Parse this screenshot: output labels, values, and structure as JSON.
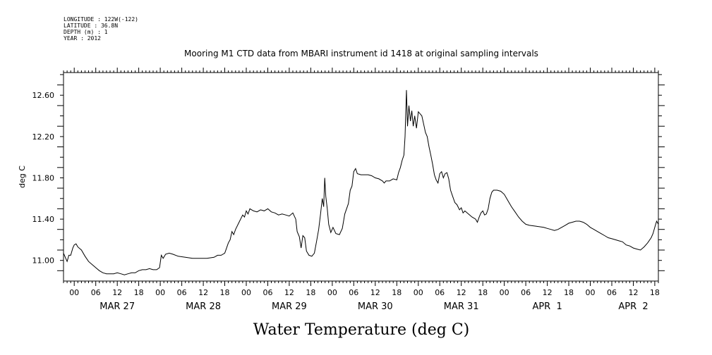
{
  "meta": {
    "longitude": "LONGITUDE : 122W(-122)",
    "latitude": "LATITUDE : 36.8N",
    "depth": "DEPTH (m) : 1",
    "year": "YEAR : 2012"
  },
  "chart_data": {
    "type": "line",
    "title": "Mooring M1 CTD data from MBARI instrument id 1418 at original sampling intervals",
    "xlabel": "Water Temperature (deg C)",
    "ylabel": "deg C",
    "x_unit": "hours since 2012-03-26 21:00",
    "xlim": [
      0,
      166
    ],
    "ylim": [
      10.8,
      12.82
    ],
    "yticks": [
      11.0,
      11.4,
      11.8,
      12.2,
      12.6
    ],
    "ytick_labels": [
      "11.00",
      "11.40",
      "11.80",
      "12.20",
      "12.60"
    ],
    "hour_tick_labels": [
      "00",
      "06",
      "12",
      "18"
    ],
    "day_labels": [
      {
        "label": "MAR 27",
        "x": 15
      },
      {
        "label": "MAR 28",
        "x": 39
      },
      {
        "label": "MAR 29",
        "x": 63
      },
      {
        "label": "MAR 30",
        "x": 87
      },
      {
        "label": "MAR 31",
        "x": 111
      },
      {
        "label": "APR  1",
        "x": 135
      },
      {
        "label": "APR  2",
        "x": 159
      }
    ],
    "grid": false,
    "series": [
      {
        "points": [
          [
            0,
            11.07
          ],
          [
            0.5,
            11.03
          ],
          [
            1,
            10.99
          ],
          [
            1.5,
            11.05
          ],
          [
            2,
            11.05
          ],
          [
            2.6,
            11.12
          ],
          [
            3,
            11.15
          ],
          [
            3.5,
            11.16
          ],
          [
            4,
            11.13
          ],
          [
            5,
            11.1
          ],
          [
            6,
            11.04
          ],
          [
            7,
            10.99
          ],
          [
            8,
            10.96
          ],
          [
            9,
            10.93
          ],
          [
            10,
            10.9
          ],
          [
            11,
            10.88
          ],
          [
            12,
            10.87
          ],
          [
            13,
            10.87
          ],
          [
            14,
            10.87
          ],
          [
            15,
            10.88
          ],
          [
            16,
            10.87
          ],
          [
            17,
            10.86
          ],
          [
            18,
            10.87
          ],
          [
            19,
            10.88
          ],
          [
            20,
            10.88
          ],
          [
            21,
            10.9
          ],
          [
            22,
            10.91
          ],
          [
            23,
            10.91
          ],
          [
            24,
            10.92
          ],
          [
            25,
            10.91
          ],
          [
            26,
            10.91
          ],
          [
            26.8,
            10.93
          ],
          [
            27.3,
            11.05
          ],
          [
            27.8,
            11.02
          ],
          [
            28.5,
            11.06
          ],
          [
            29.5,
            11.07
          ],
          [
            30.5,
            11.06
          ],
          [
            32,
            11.04
          ],
          [
            34,
            11.03
          ],
          [
            36,
            11.02
          ],
          [
            38,
            11.02
          ],
          [
            40,
            11.02
          ],
          [
            42,
            11.03
          ],
          [
            43,
            11.05
          ],
          [
            44,
            11.05
          ],
          [
            45,
            11.07
          ],
          [
            45.5,
            11.12
          ],
          [
            46,
            11.17
          ],
          [
            46.5,
            11.2
          ],
          [
            47,
            11.28
          ],
          [
            47.5,
            11.25
          ],
          [
            48,
            11.3
          ],
          [
            49,
            11.37
          ],
          [
            50,
            11.44
          ],
          [
            50.5,
            11.42
          ],
          [
            51,
            11.48
          ],
          [
            51.5,
            11.45
          ],
          [
            52,
            11.5
          ],
          [
            53,
            11.48
          ],
          [
            54,
            11.47
          ],
          [
            55,
            11.49
          ],
          [
            56,
            11.48
          ],
          [
            57,
            11.5
          ],
          [
            58,
            11.47
          ],
          [
            59,
            11.46
          ],
          [
            60,
            11.44
          ],
          [
            61,
            11.45
          ],
          [
            62,
            11.44
          ],
          [
            63,
            11.43
          ],
          [
            64,
            11.46
          ],
          [
            64.8,
            11.4
          ],
          [
            65.2,
            11.28
          ],
          [
            65.8,
            11.23
          ],
          [
            66.3,
            11.12
          ],
          [
            66.8,
            11.24
          ],
          [
            67.3,
            11.22
          ],
          [
            67.8,
            11.09
          ],
          [
            68.5,
            11.05
          ],
          [
            69.3,
            11.04
          ],
          [
            70,
            11.07
          ],
          [
            70.6,
            11.18
          ],
          [
            71.2,
            11.3
          ],
          [
            71.7,
            11.44
          ],
          [
            72.2,
            11.6
          ],
          [
            72.6,
            11.52
          ],
          [
            72.9,
            11.8
          ],
          [
            73.2,
            11.62
          ],
          [
            73.6,
            11.5
          ],
          [
            74,
            11.35
          ],
          [
            74.6,
            11.27
          ],
          [
            75.2,
            11.32
          ],
          [
            76,
            11.26
          ],
          [
            77,
            11.25
          ],
          [
            77.8,
            11.31
          ],
          [
            78.5,
            11.45
          ],
          [
            79.5,
            11.55
          ],
          [
            80,
            11.68
          ],
          [
            80.5,
            11.72
          ],
          [
            81,
            11.86
          ],
          [
            81.5,
            11.89
          ],
          [
            82,
            11.84
          ],
          [
            83,
            11.83
          ],
          [
            84,
            11.83
          ],
          [
            85,
            11.83
          ],
          [
            86,
            11.82
          ],
          [
            87,
            11.8
          ],
          [
            88,
            11.79
          ],
          [
            89,
            11.77
          ],
          [
            89.5,
            11.75
          ],
          [
            90,
            11.77
          ],
          [
            91,
            11.77
          ],
          [
            92,
            11.79
          ],
          [
            93,
            11.78
          ],
          [
            93.5,
            11.85
          ],
          [
            94,
            11.9
          ],
          [
            94.5,
            11.97
          ],
          [
            95,
            12.02
          ],
          [
            95.3,
            12.2
          ],
          [
            95.7,
            12.65
          ],
          [
            96,
            12.3
          ],
          [
            96.4,
            12.5
          ],
          [
            96.8,
            12.35
          ],
          [
            97.2,
            12.45
          ],
          [
            97.6,
            12.3
          ],
          [
            98,
            12.4
          ],
          [
            98.5,
            12.28
          ],
          [
            99,
            12.44
          ],
          [
            99.5,
            12.42
          ],
          [
            100,
            12.4
          ],
          [
            100.5,
            12.32
          ],
          [
            101,
            12.24
          ],
          [
            101.5,
            12.2
          ],
          [
            102,
            12.1
          ],
          [
            102.5,
            12.02
          ],
          [
            103,
            11.93
          ],
          [
            103.5,
            11.83
          ],
          [
            104,
            11.78
          ],
          [
            104.5,
            11.75
          ],
          [
            105,
            11.84
          ],
          [
            105.5,
            11.86
          ],
          [
            106,
            11.8
          ],
          [
            106.5,
            11.84
          ],
          [
            107,
            11.85
          ],
          [
            107.5,
            11.79
          ],
          [
            108,
            11.68
          ],
          [
            108.6,
            11.62
          ],
          [
            109.2,
            11.56
          ],
          [
            109.8,
            11.54
          ],
          [
            110.5,
            11.49
          ],
          [
            111,
            11.51
          ],
          [
            111.5,
            11.46
          ],
          [
            112,
            11.48
          ],
          [
            113,
            11.45
          ],
          [
            114,
            11.42
          ],
          [
            115,
            11.4
          ],
          [
            115.5,
            11.37
          ],
          [
            116,
            11.42
          ],
          [
            116.5,
            11.46
          ],
          [
            117,
            11.48
          ],
          [
            117.5,
            11.44
          ],
          [
            118,
            11.45
          ],
          [
            118.5,
            11.5
          ],
          [
            119,
            11.6
          ],
          [
            119.5,
            11.66
          ],
          [
            120,
            11.68
          ],
          [
            121,
            11.68
          ],
          [
            122,
            11.67
          ],
          [
            123,
            11.64
          ],
          [
            124,
            11.58
          ],
          [
            125,
            11.52
          ],
          [
            126,
            11.47
          ],
          [
            127,
            11.42
          ],
          [
            128,
            11.38
          ],
          [
            129,
            11.35
          ],
          [
            130,
            11.34
          ],
          [
            132,
            11.33
          ],
          [
            134,
            11.32
          ],
          [
            135,
            11.31
          ],
          [
            136,
            11.3
          ],
          [
            137,
            11.29
          ],
          [
            138,
            11.3
          ],
          [
            139,
            11.32
          ],
          [
            140,
            11.34
          ],
          [
            141,
            11.36
          ],
          [
            142,
            11.37
          ],
          [
            143,
            11.38
          ],
          [
            144,
            11.38
          ],
          [
            145,
            11.37
          ],
          [
            146,
            11.35
          ],
          [
            147,
            11.32
          ],
          [
            148,
            11.3
          ],
          [
            149,
            11.28
          ],
          [
            150,
            11.26
          ],
          [
            151,
            11.24
          ],
          [
            152,
            11.22
          ],
          [
            153,
            11.21
          ],
          [
            154,
            11.2
          ],
          [
            155,
            11.19
          ],
          [
            156,
            11.18
          ],
          [
            157,
            11.15
          ],
          [
            158,
            11.14
          ],
          [
            159,
            11.12
          ],
          [
            160,
            11.11
          ],
          [
            161,
            11.1
          ],
          [
            162,
            11.13
          ],
          [
            163,
            11.17
          ],
          [
            164,
            11.22
          ],
          [
            164.5,
            11.26
          ],
          [
            165,
            11.32
          ],
          [
            165.5,
            11.38
          ],
          [
            166,
            11.35
          ]
        ]
      }
    ]
  }
}
